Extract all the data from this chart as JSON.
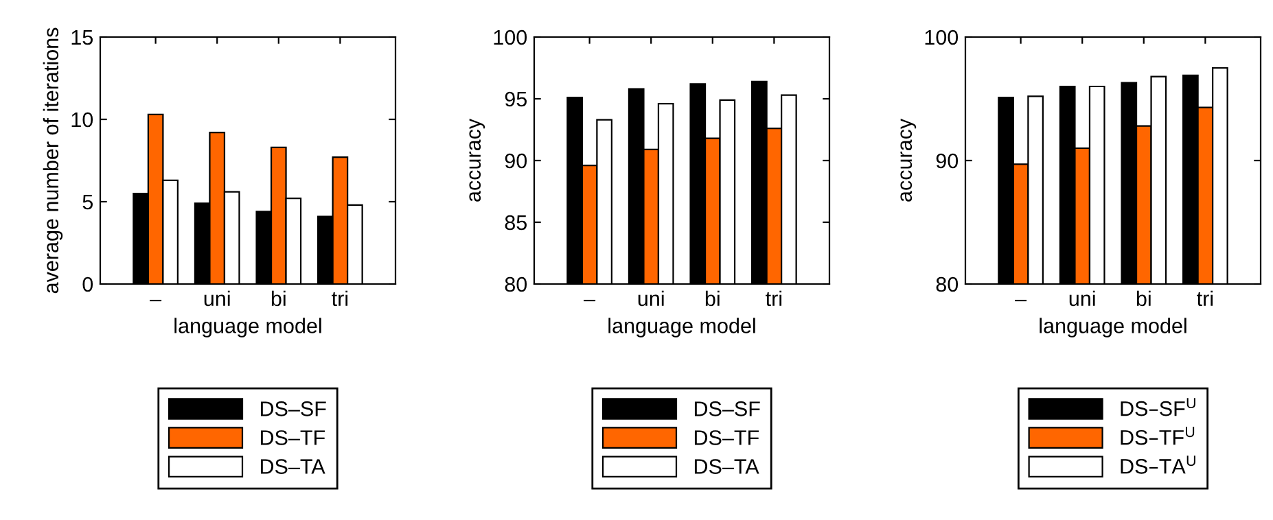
{
  "chart_data": [
    {
      "type": "bar",
      "categories": [
        "–",
        "uni",
        "bi",
        "tri"
      ],
      "xlabel": "language model",
      "ylabel": "average number of iterations",
      "ylim": [
        0,
        15
      ],
      "yticks": [
        0,
        5,
        10,
        15
      ],
      "grid": false,
      "legend": "bottom",
      "series": [
        {
          "name": "DS–SF",
          "color": "#000000",
          "values": [
            5.5,
            4.9,
            4.4,
            4.1
          ]
        },
        {
          "name": "DS–TF",
          "color": "#ff6600",
          "values": [
            10.3,
            9.2,
            8.3,
            7.7
          ]
        },
        {
          "name": "DS–TA",
          "color": "#ffffff",
          "values": [
            6.3,
            5.6,
            5.2,
            4.8
          ]
        }
      ]
    },
    {
      "type": "bar",
      "categories": [
        "–",
        "uni",
        "bi",
        "tri"
      ],
      "xlabel": "language model",
      "ylabel": "accuracy",
      "ylim": [
        80,
        100
      ],
      "yticks": [
        80,
        85,
        90,
        95,
        100
      ],
      "grid": false,
      "legend": "bottom",
      "series": [
        {
          "name": "DS–SF",
          "color": "#000000",
          "values": [
            95.1,
            95.8,
            96.2,
            96.4
          ]
        },
        {
          "name": "DS–TF",
          "color": "#ff6600",
          "values": [
            89.6,
            90.9,
            91.8,
            92.6
          ]
        },
        {
          "name": "DS–TA",
          "color": "#ffffff",
          "values": [
            93.3,
            94.6,
            94.9,
            95.3
          ]
        }
      ]
    },
    {
      "type": "bar",
      "categories": [
        "–",
        "uni",
        "bi",
        "tri"
      ],
      "xlabel": "language model",
      "ylabel": "accuracy",
      "ylim": [
        80,
        100
      ],
      "yticks": [
        80,
        90,
        100
      ],
      "grid": false,
      "legend": "bottom",
      "series": [
        {
          "name": "DS–SF$^{U}$",
          "color": "#000000",
          "values": [
            95.1,
            96.0,
            96.3,
            96.9
          ]
        },
        {
          "name": "DS–TF$^{U}$",
          "color": "#ff6600",
          "values": [
            89.7,
            91.0,
            92.8,
            94.3
          ]
        },
        {
          "name": "DS–TA$^{U}$",
          "color": "#ffffff",
          "values": [
            95.2,
            96.0,
            96.8,
            97.5
          ]
        }
      ]
    }
  ]
}
